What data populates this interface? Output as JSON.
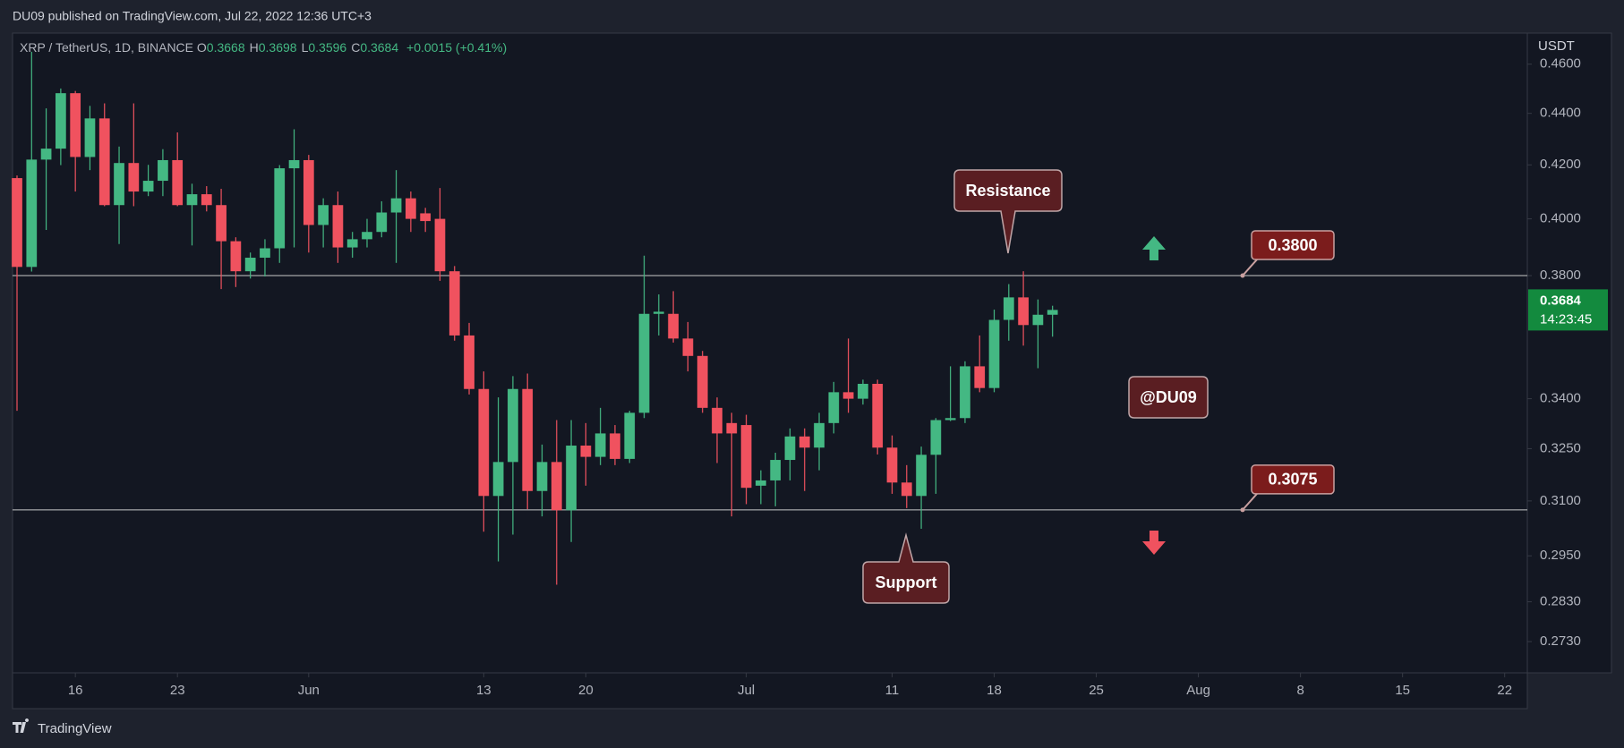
{
  "header": {
    "publisher": "DU09 published on TradingView.com, Jul 22, 2022 12:36 UTC+3"
  },
  "chart_data": {
    "type": "candlestick",
    "symbol": "XRP / TetherUS, 1D, BINANCE",
    "ohlc": [
      {
        "name": "O",
        "value": 0.3668
      },
      {
        "name": "H",
        "value": 0.3698
      },
      {
        "name": "L",
        "value": 0.3596
      },
      {
        "name": "C",
        "value": 0.3684
      }
    ],
    "change": "+0.0015 (+0.41%)",
    "y_axis_label": "USDT",
    "x": [
      "May 12",
      "May 13",
      "May 14",
      "May 15",
      "May 16",
      "May 17",
      "May 18",
      "May 19",
      "May 20",
      "May 21",
      "May 22",
      "May 23",
      "May 24",
      "May 25",
      "May 26",
      "May 27",
      "May 28",
      "May 29",
      "May 30",
      "May 31",
      "Jun 1",
      "Jun 2",
      "Jun 3",
      "Jun 4",
      "Jun 5",
      "Jun 6",
      "Jun 7",
      "Jun 8",
      "Jun 9",
      "Jun 10",
      "Jun 11",
      "Jun 12",
      "Jun 13",
      "Jun 14",
      "Jun 15",
      "Jun 16",
      "Jun 17",
      "Jun 18",
      "Jun 19",
      "Jun 20",
      "Jun 21",
      "Jun 22",
      "Jun 23",
      "Jun 24",
      "Jun 25",
      "Jun 26",
      "Jun 27",
      "Jun 28",
      "Jun 29",
      "Jun 30",
      "Jul 1",
      "Jul 2",
      "Jul 3",
      "Jul 4",
      "Jul 5",
      "Jul 6",
      "Jul 7",
      "Jul 8",
      "Jul 9",
      "Jul 10",
      "Jul 11",
      "Jul 12",
      "Jul 13",
      "Jul 14",
      "Jul 15",
      "Jul 16",
      "Jul 17",
      "Jul 18",
      "Jul 19",
      "Jul 20",
      "Jul 21",
      "Jul 22"
    ],
    "open": [
      0.415,
      0.383,
      0.422,
      0.4262,
      0.4481,
      0.423,
      0.438,
      0.405,
      0.4207,
      0.41,
      0.414,
      0.4218,
      0.405,
      0.409,
      0.405,
      0.392,
      0.3815,
      0.3862,
      0.3895,
      0.4187,
      0.4218,
      0.3978,
      0.405,
      0.3898,
      0.3927,
      0.3953,
      0.4023,
      0.4075,
      0.402,
      0.4,
      0.3815,
      0.36,
      0.343,
      0.3114,
      0.3211,
      0.343,
      0.3128,
      0.3211,
      0.3074,
      0.3259,
      0.3226,
      0.3295,
      0.322,
      0.3357,
      0.3671,
      0.3671,
      0.359,
      0.3534,
      0.3372,
      0.3326,
      0.332,
      0.3143,
      0.3158,
      0.3217,
      0.3286,
      0.3253,
      0.3326,
      0.342,
      0.34,
      0.3446,
      0.3253,
      0.3152,
      0.3114,
      0.3232,
      0.3335,
      0.3341,
      0.3501,
      0.3433,
      0.3651,
      0.3726,
      0.3634,
      0.3668
    ],
    "high": [
      0.416,
      0.4652,
      0.442,
      0.45,
      0.449,
      0.443,
      0.444,
      0.427,
      0.444,
      0.42,
      0.426,
      0.4325,
      0.4129,
      0.412,
      0.411,
      0.3934,
      0.388,
      0.3927,
      0.4199,
      0.4337,
      0.4238,
      0.4075,
      0.41,
      0.3953,
      0.4,
      0.4064,
      0.418,
      0.41,
      0.404,
      0.4113,
      0.3833,
      0.3641,
      0.3485,
      0.3404,
      0.347,
      0.3478,
      0.3262,
      0.3335,
      0.3335,
      0.3326,
      0.3372,
      0.332,
      0.3363,
      0.3869,
      0.3736,
      0.3747,
      0.3644,
      0.355,
      0.3404,
      0.3357,
      0.3351,
      0.3187,
      0.3238,
      0.331,
      0.331,
      0.3357,
      0.3452,
      0.359,
      0.3459,
      0.3459,
      0.3289,
      0.3202,
      0.3256,
      0.3341,
      0.3501,
      0.3517,
      0.36,
      0.3685,
      0.3771,
      0.3815,
      0.3719,
      0.3698
    ],
    "low": [
      0.3363,
      0.3814,
      0.396,
      0.4199,
      0.41,
      0.418,
      0.4046,
      0.391,
      0.4046,
      0.4083,
      0.4083,
      0.4046,
      0.3905,
      0.4027,
      0.3754,
      0.3761,
      0.379,
      0.3797,
      0.3844,
      0.3898,
      0.388,
      0.3898,
      0.3844,
      0.3862,
      0.3898,
      0.3934,
      0.3844,
      0.3953,
      0.3953,
      0.3782,
      0.3583,
      0.3413,
      0.3015,
      0.2935,
      0.3007,
      0.3077,
      0.3057,
      0.2874,
      0.2987,
      0.3143,
      0.3202,
      0.3202,
      0.3208,
      0.3341,
      0.36,
      0.3577,
      0.3485,
      0.3357,
      0.3208,
      0.3057,
      0.3091,
      0.3091,
      0.3085,
      0.3158,
      0.3128,
      0.3187,
      0.3295,
      0.3357,
      0.3382,
      0.3233,
      0.312,
      0.308,
      0.3023,
      0.312,
      0.3332,
      0.3326,
      0.342,
      0.342,
      0.3583,
      0.3567,
      0.3495,
      0.3596
    ],
    "close": [
      0.383,
      0.422,
      0.4262,
      0.4481,
      0.423,
      0.438,
      0.405,
      0.4207,
      0.41,
      0.414,
      0.4218,
      0.405,
      0.409,
      0.405,
      0.392,
      0.3815,
      0.3862,
      0.3895,
      0.4187,
      0.4218,
      0.3978,
      0.405,
      0.3898,
      0.3927,
      0.3953,
      0.4023,
      0.4075,
      0.4,
      0.3992,
      0.3815,
      0.36,
      0.343,
      0.3114,
      0.3211,
      0.343,
      0.3128,
      0.3211,
      0.3074,
      0.3259,
      0.3226,
      0.3295,
      0.322,
      0.3357,
      0.3671,
      0.3678,
      0.359,
      0.3534,
      0.3372,
      0.3295,
      0.3295,
      0.3137,
      0.3158,
      0.3217,
      0.3286,
      0.3253,
      0.3326,
      0.342,
      0.34,
      0.3446,
      0.3253,
      0.3152,
      0.3114,
      0.3232,
      0.3335,
      0.3341,
      0.3501,
      0.3433,
      0.3651,
      0.3726,
      0.3634,
      0.3668,
      0.3684
    ],
    "up_color": "#44b883",
    "down_color": "#f0525f",
    "log_scale": true,
    "grid": false,
    "ylim": [
      0.2654,
      0.4731
    ],
    "yticks": [
      {
        "value": 0.46,
        "label": "0.4600"
      },
      {
        "value": 0.44,
        "label": "0.4400"
      },
      {
        "value": 0.42,
        "label": "0.4200"
      },
      {
        "value": 0.4,
        "label": "0.4000"
      },
      {
        "value": 0.38,
        "label": "0.3800"
      },
      {
        "value": 0.34,
        "label": "0.3400"
      },
      {
        "value": 0.325,
        "label": "0.3250"
      },
      {
        "value": 0.31,
        "label": "0.3100"
      },
      {
        "value": 0.295,
        "label": "0.2950"
      },
      {
        "value": 0.283,
        "label": "0.2830"
      },
      {
        "value": 0.273,
        "label": "0.2730"
      }
    ],
    "xlim": [
      "May 12",
      "Aug 23"
    ],
    "xticks": [
      {
        "value": "May 16",
        "label": "16"
      },
      {
        "value": "May 23",
        "label": "23"
      },
      {
        "value": "Jun 1",
        "label": "Jun"
      },
      {
        "value": "Jun 13",
        "label": "13"
      },
      {
        "value": "Jun 20",
        "label": "20"
      },
      {
        "value": "Jul 1",
        "label": "Jul"
      },
      {
        "value": "Jul 11",
        "label": "11"
      },
      {
        "value": "Jul 18",
        "label": "18"
      },
      {
        "value": "Jul 25",
        "label": "25"
      },
      {
        "value": "Aug 1",
        "label": "Aug"
      },
      {
        "value": "Aug 8",
        "label": "8"
      },
      {
        "value": "Aug 15",
        "label": "15"
      },
      {
        "value": "Aug 22",
        "label": "22"
      }
    ],
    "levels": [
      {
        "value": 0.38,
        "label": "0.3800"
      },
      {
        "value": 0.3075,
        "label": "0.3075"
      }
    ],
    "last_price": {
      "value": 0.3684,
      "label": "0.3684"
    },
    "countdown": "14:23:45",
    "annotations": [
      "Resistance",
      "Support",
      "@DU09"
    ]
  },
  "footer": {
    "brand": "TradingView"
  }
}
